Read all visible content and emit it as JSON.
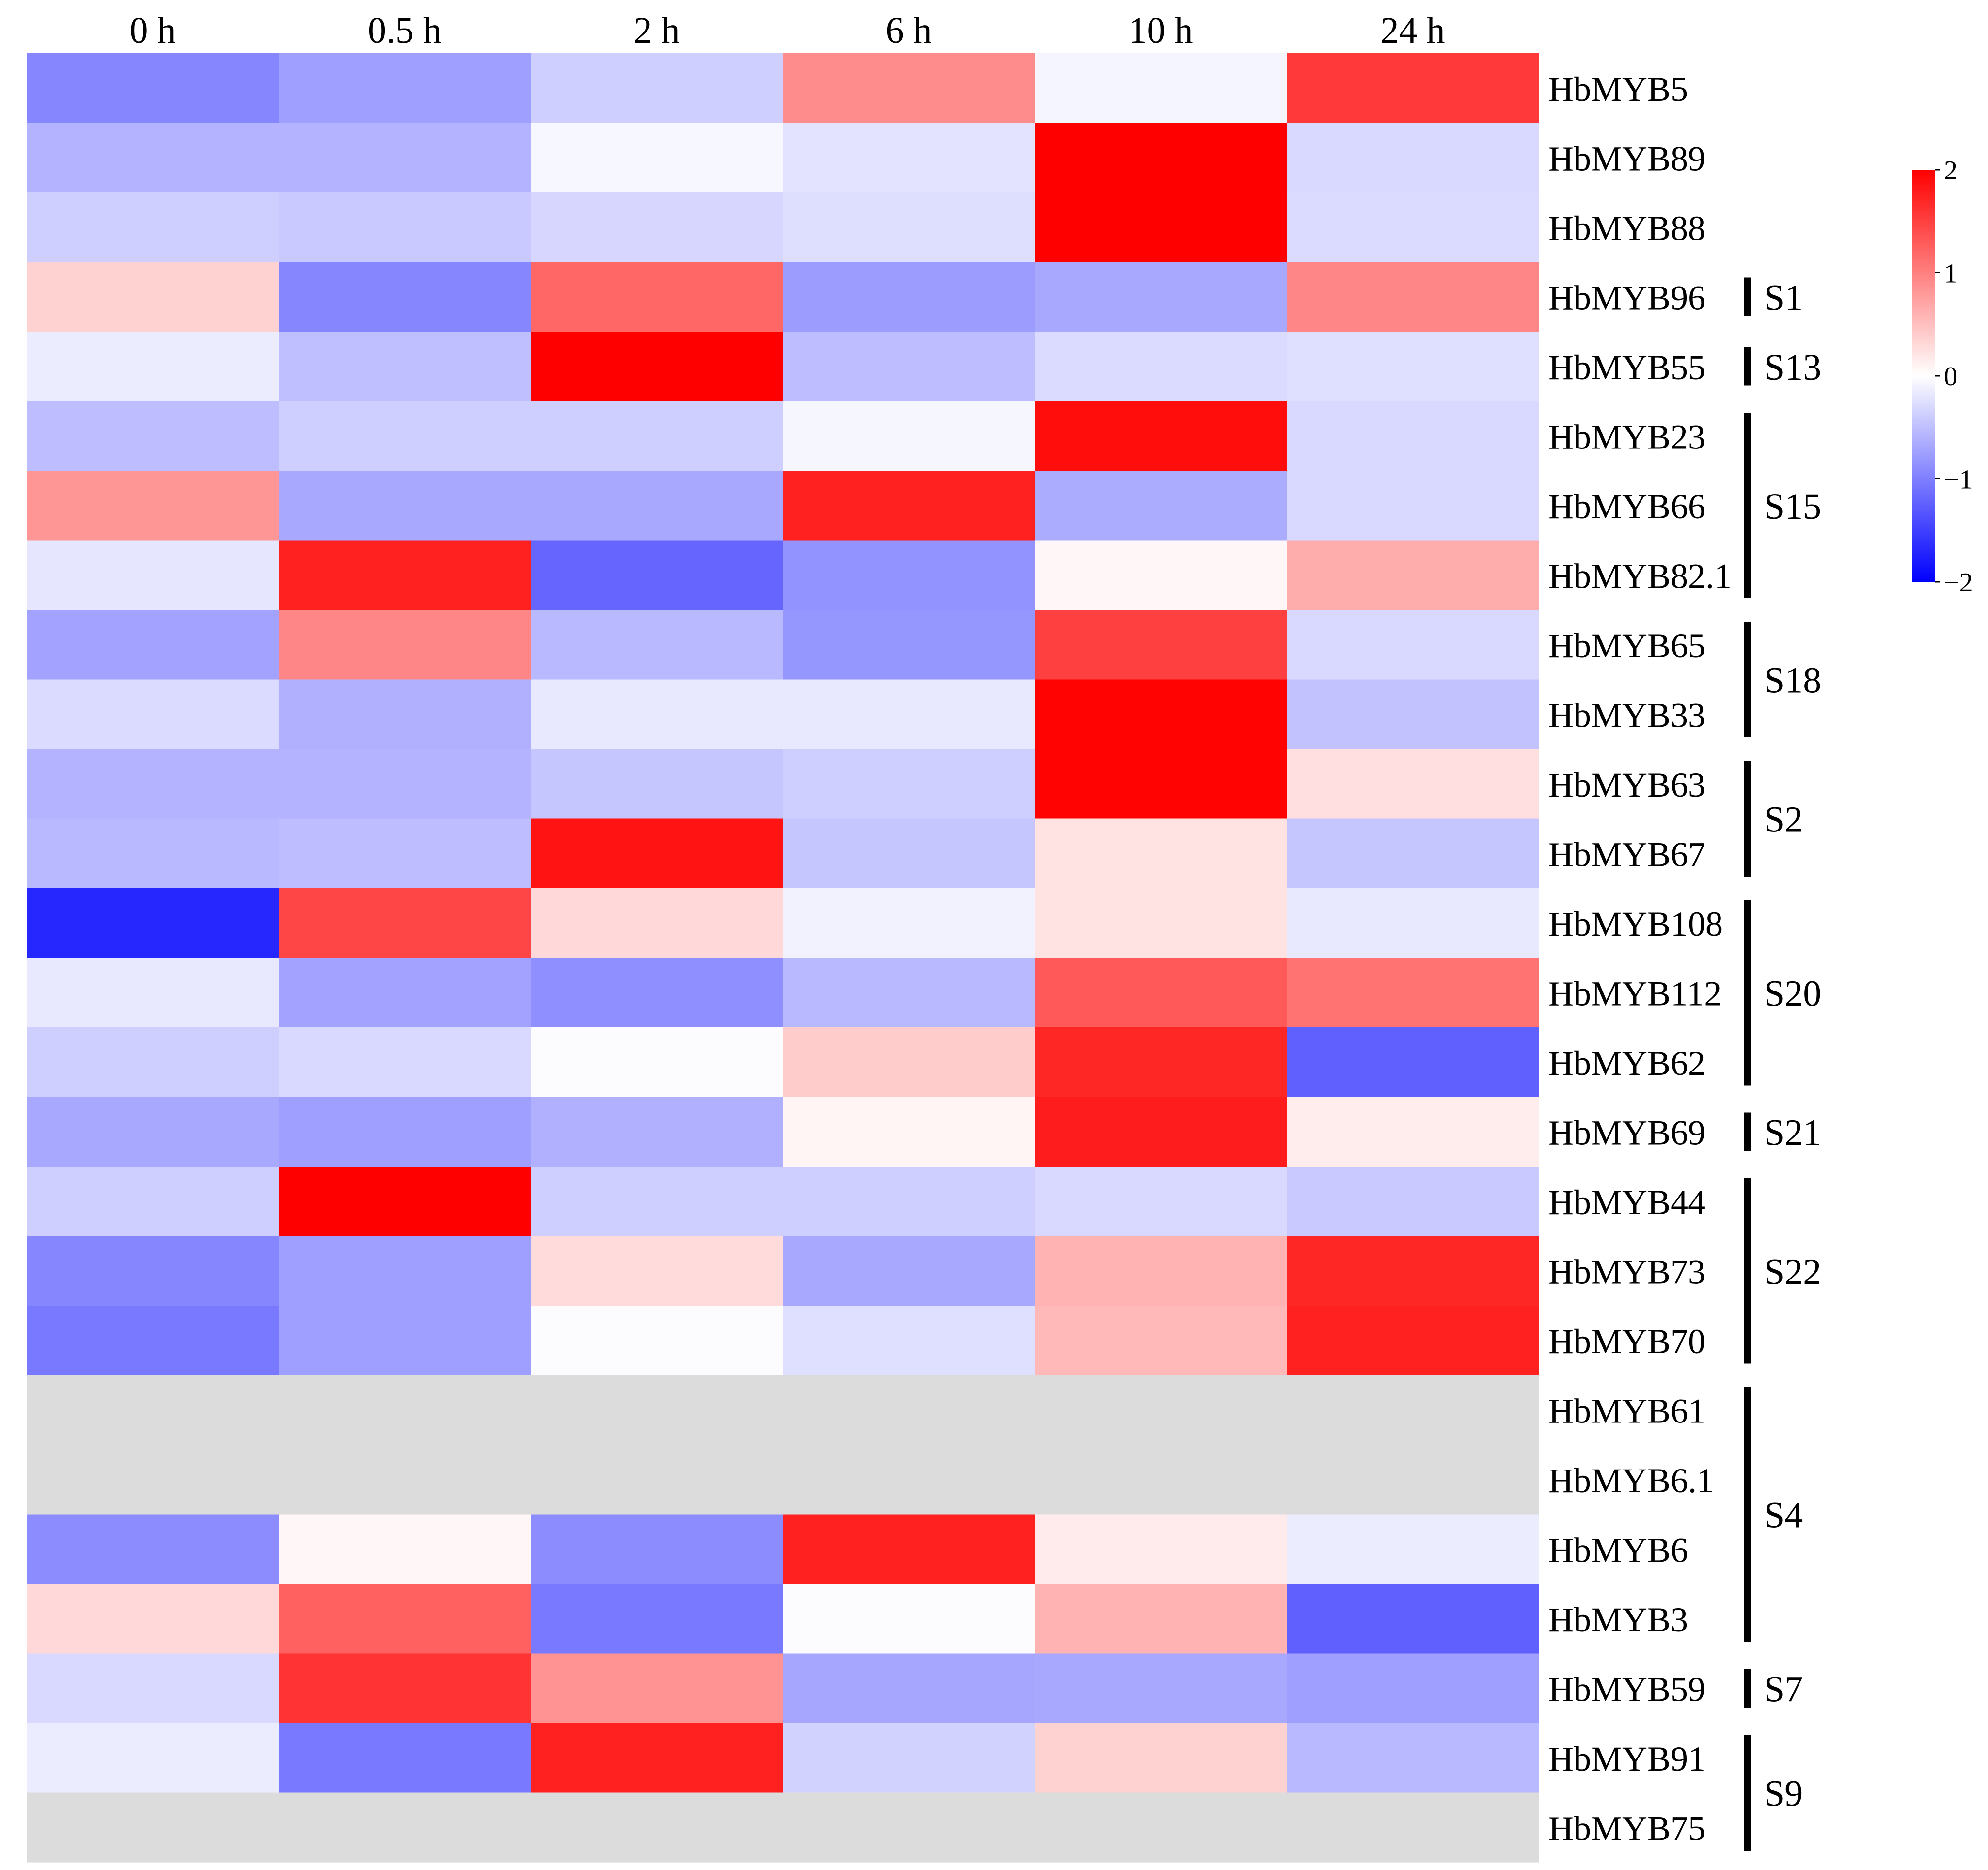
{
  "chart_data": {
    "type": "heatmap",
    "title": "",
    "columns": [
      "0 h",
      "0.5 h",
      "2 h",
      "6 h",
      "10 h",
      "24 h"
    ],
    "rows": [
      "HbMYB5",
      "HbMYB89",
      "HbMYB88",
      "HbMYB96",
      "HbMYB55",
      "HbMYB23",
      "HbMYB66",
      "HbMYB82.1",
      "HbMYB65",
      "HbMYB33",
      "HbMYB63",
      "HbMYB67",
      "HbMYB108",
      "HbMYB112",
      "HbMYB62",
      "HbMYB69",
      "HbMYB44",
      "HbMYB73",
      "HbMYB70",
      "HbMYB61",
      "HbMYB6.1",
      "HbMYB6",
      "HbMYB3",
      "HbMYB59",
      "HbMYB91",
      "HbMYB75"
    ],
    "values": [
      [
        -0.95,
        -0.75,
        -0.38,
        0.9,
        -0.08,
        1.55
      ],
      [
        -0.6,
        -0.6,
        -0.06,
        -0.22,
        2.0,
        -0.3
      ],
      [
        -0.38,
        -0.42,
        -0.32,
        -0.26,
        2.0,
        -0.28
      ],
      [
        0.35,
        -0.95,
        1.2,
        -0.78,
        -0.68,
        0.95
      ],
      [
        -0.15,
        -0.5,
        2.0,
        -0.52,
        -0.28,
        -0.25
      ],
      [
        -0.52,
        -0.38,
        -0.38,
        -0.07,
        1.9,
        -0.3
      ],
      [
        0.82,
        -0.68,
        -0.68,
        1.75,
        -0.65,
        -0.3
      ],
      [
        -0.2,
        1.75,
        -1.2,
        -0.85,
        0.06,
        0.65
      ],
      [
        -0.72,
        0.95,
        -0.55,
        -0.82,
        1.5,
        -0.3
      ],
      [
        -0.28,
        -0.62,
        -0.18,
        -0.18,
        1.98,
        -0.48
      ],
      [
        -0.6,
        -0.6,
        -0.45,
        -0.38,
        1.98,
        0.25
      ],
      [
        -0.55,
        -0.52,
        1.85,
        -0.45,
        0.22,
        -0.45
      ],
      [
        -1.7,
        1.45,
        0.3,
        -0.1,
        0.22,
        -0.18
      ],
      [
        -0.18,
        -0.72,
        -0.88,
        -0.55,
        1.3,
        1.1
      ],
      [
        -0.38,
        -0.3,
        -0.02,
        0.4,
        1.7,
        -1.25
      ],
      [
        -0.68,
        -0.75,
        -0.62,
        0.08,
        1.78,
        0.15
      ],
      [
        -0.38,
        2.0,
        -0.38,
        -0.38,
        -0.3,
        -0.42
      ],
      [
        -0.95,
        -0.75,
        0.28,
        -0.68,
        0.6,
        1.7
      ],
      [
        -1.05,
        -0.75,
        -0.02,
        -0.25,
        0.55,
        1.75
      ],
      [
        null,
        null,
        null,
        null,
        null,
        null
      ],
      [
        null,
        null,
        null,
        null,
        null,
        null
      ],
      [
        -0.9,
        0.06,
        -0.9,
        1.75,
        0.16,
        -0.15
      ],
      [
        0.3,
        1.25,
        -1.05,
        -0.02,
        0.6,
        -1.25
      ],
      [
        -0.3,
        1.6,
        0.85,
        -0.7,
        -0.68,
        -0.75
      ],
      [
        -0.15,
        -1.05,
        1.75,
        -0.35,
        0.35,
        -0.55
      ],
      [
        null,
        null,
        null,
        null,
        null,
        null
      ]
    ],
    "groups": [
      {
        "label": "S1",
        "start": 3,
        "end": 3
      },
      {
        "label": "S13",
        "start": 4,
        "end": 4
      },
      {
        "label": "S15",
        "start": 5,
        "end": 7
      },
      {
        "label": "S18",
        "start": 8,
        "end": 9
      },
      {
        "label": "S2",
        "start": 10,
        "end": 11
      },
      {
        "label": "S20",
        "start": 12,
        "end": 14
      },
      {
        "label": "S21",
        "start": 15,
        "end": 15
      },
      {
        "label": "S22",
        "start": 16,
        "end": 18
      },
      {
        "label": "S4",
        "start": 19,
        "end": 22
      },
      {
        "label": "S7",
        "start": 23,
        "end": 23
      },
      {
        "label": "S9",
        "start": 24,
        "end": 25
      }
    ],
    "colorbar": {
      "range": [
        -2,
        2
      ],
      "ticks": [
        2,
        1,
        0,
        -1,
        -2
      ],
      "tick_labels": [
        "2",
        "1",
        "0",
        "−1",
        "−2"
      ],
      "colors": {
        "low": "#0000ff",
        "mid": "#ffffff",
        "high": "#ff0000",
        "missing": "#dcdcdc"
      }
    },
    "xlabel": "",
    "ylabel": ""
  }
}
